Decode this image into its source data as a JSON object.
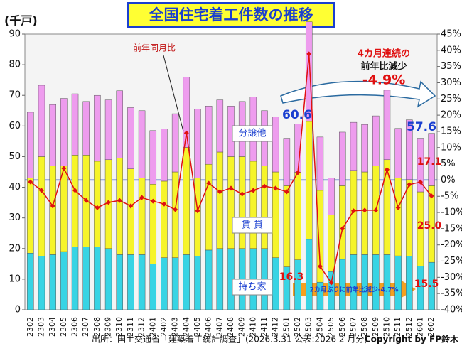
{
  "chart_data": {
    "type": "bar",
    "title": "全国住宅着工件数の推移",
    "y_unit": "(千戸)",
    "stacked": true,
    "categories": [
      "2302",
      "2303",
      "2304",
      "2305",
      "2306",
      "2307",
      "2308",
      "2309",
      "2310",
      "2311",
      "2312",
      "2401",
      "2402",
      "2403",
      "2404",
      "2405",
      "2406",
      "2407",
      "2408",
      "2409",
      "2410",
      "2411",
      "2412",
      "2501",
      "2502",
      "2503",
      "2504",
      "2505",
      "2506",
      "2507",
      "2508",
      "2509",
      "2510",
      "2511",
      "2512",
      "2601",
      "2602"
    ],
    "series": [
      {
        "name": "持ち家",
        "color": "#38d4e4",
        "values": [
          18.5,
          17.5,
          18,
          19,
          20.5,
          20.5,
          20.5,
          20,
          18,
          18,
          18,
          15,
          17,
          17,
          18,
          17.5,
          19.5,
          20,
          20,
          20,
          20,
          20,
          17,
          14,
          16.3,
          23,
          9,
          12.5,
          16.5,
          18,
          18,
          18,
          18,
          17.6,
          17.5,
          14.3,
          15.5
        ]
      },
      {
        "name": "賃 貸",
        "color": "#f6f42a",
        "values": [
          24.5,
          32.5,
          29,
          28,
          30,
          30,
          28,
          29,
          31.5,
          28,
          25,
          26,
          25,
          28,
          35,
          25.5,
          28,
          31.5,
          30,
          30,
          28.5,
          27,
          28,
          26.5,
          28.6,
          38.5,
          30,
          18.5,
          24,
          27.5,
          27,
          29,
          31,
          25.4,
          25,
          24.2,
          25
        ]
      },
      {
        "name": "分譲他",
        "color": "#ee9cee",
        "values": [
          21.5,
          23.3,
          20,
          22,
          20,
          17.5,
          21.5,
          19.5,
          22,
          20,
          22,
          17.5,
          17,
          19,
          23,
          22.5,
          19,
          17,
          16.5,
          18,
          21,
          18,
          18,
          15.5,
          15.7,
          32.5,
          17.4,
          12,
          17.5,
          15.7,
          15.5,
          16.3,
          22.7,
          16.2,
          19.5,
          17.5,
          17.1
        ]
      },
      {
        "name": "前年同月比",
        "color": "#e01010",
        "type": "line",
        "axis": "y2",
        "values": [
          -0.6,
          -3.2,
          -8,
          3.6,
          -3.2,
          -6.3,
          -8.5,
          -6.9,
          -6.3,
          -8,
          -5.4,
          -6.5,
          -7.4,
          -9.1,
          14.5,
          -9.5,
          -1,
          -3.6,
          -2.5,
          -4.3,
          -3.2,
          -1.9,
          -2.5,
          -3.6,
          2.3,
          38.9,
          -26.6,
          -31.7,
          -15,
          -9.5,
          -9.3,
          -9.3,
          3.2,
          -8.5,
          -1.4,
          -0.6,
          -4.9
        ]
      }
    ],
    "ylim": [
      0,
      90
    ],
    "yticks": [
      0,
      10,
      20,
      30,
      40,
      50,
      60,
      70,
      80,
      90
    ],
    "y2lim": [
      -40,
      45
    ],
    "y2ticks": [
      {
        "value": -40,
        "label": "-40%"
      },
      {
        "value": -35,
        "label": "-35%"
      },
      {
        "value": -30,
        "label": "-30%"
      },
      {
        "value": -25,
        "label": "-25%"
      },
      {
        "value": -20,
        "label": "-20%"
      },
      {
        "value": -15,
        "label": "-15%"
      },
      {
        "value": -10,
        "label": "-10%"
      },
      {
        "value": -5,
        "label": "-5%"
      },
      {
        "value": 0,
        "label": "0%"
      },
      {
        "value": 5,
        "label": "5%"
      },
      {
        "value": 10,
        "label": "10%"
      },
      {
        "value": 15,
        "label": "15%"
      },
      {
        "value": 20,
        "label": "20%"
      },
      {
        "value": 25,
        "label": "25%"
      },
      {
        "value": 30,
        "label": "30%"
      },
      {
        "value": 35,
        "label": "35%"
      },
      {
        "value": 40,
        "label": "40%"
      },
      {
        "value": 45,
        "label": "45%"
      }
    ],
    "annotations": [
      "60.6",
      "57.6",
      "17.1",
      "25.0",
      "16.3",
      "15.5",
      "4カ月連続の",
      "前年比減少",
      "-4.9%",
      "2カ月ぶりに前年比減少-4.7%"
    ],
    "source": "出所：国土交通省「建築着工統計調査」(2026.3.31 公表:2026 2 月分)",
    "copyright": "Copyright by FP鈴木"
  }
}
